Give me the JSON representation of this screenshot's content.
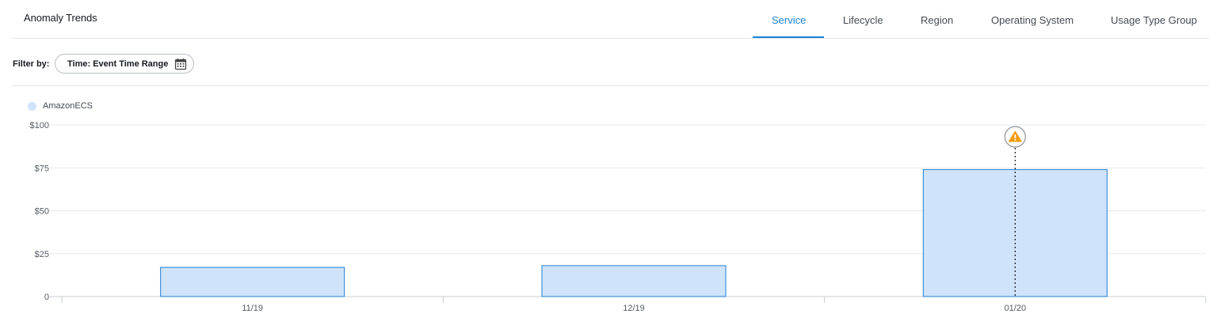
{
  "header": {
    "title": "Anomaly Trends",
    "tabs": [
      {
        "label": "Service",
        "active": true
      },
      {
        "label": "Lifecycle",
        "active": false
      },
      {
        "label": "Region",
        "active": false
      },
      {
        "label": "Operating System",
        "active": false
      },
      {
        "label": "Usage Type Group",
        "active": false
      }
    ]
  },
  "filter": {
    "label": "Filter by:",
    "chip_label": "Time: Event Time Range",
    "chip_icon": "calendar-icon"
  },
  "colors": {
    "accent": "#1a83d6",
    "bar_fill": "#cfe3fa",
    "bar_stroke": "#1f7fd1",
    "warning": "#f39c12"
  },
  "chart_data": {
    "type": "bar",
    "categories": [
      "11/19",
      "12/19",
      "01/20"
    ],
    "series": [
      {
        "name": "AmazonECS",
        "values": [
          17,
          18,
          74
        ]
      }
    ],
    "ylim": [
      0,
      100
    ],
    "yticks": [
      0,
      25,
      50,
      75,
      100
    ],
    "ytick_labels": [
      "0",
      "$25",
      "$50",
      "$75",
      "$100"
    ],
    "grid": true,
    "legend": "top-left",
    "anomaly": {
      "category": "01/20",
      "icon": "warning-icon"
    }
  }
}
